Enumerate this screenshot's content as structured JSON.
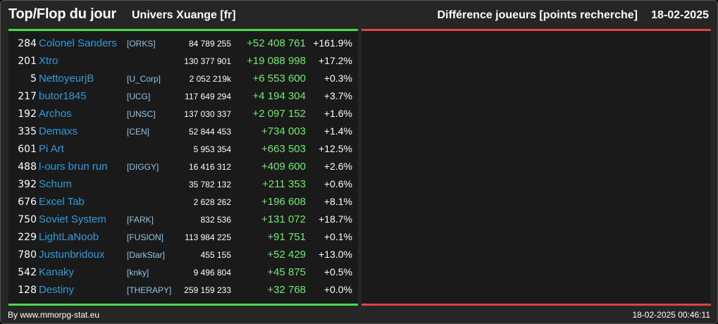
{
  "header": {
    "title": "Top/Flop du jour",
    "universe": "Univers Xuange [fr]",
    "metric": "Différence joueurs [points recherche]",
    "date": "18-02-2025"
  },
  "top_rows": [
    {
      "rank": "284",
      "name": "Colonel Sanders",
      "alliance": "[ORKS]",
      "points": "84 789 255",
      "diff": "+52 408 761",
      "pct": "+161.9%"
    },
    {
      "rank": "201",
      "name": "Xtro",
      "alliance": "",
      "points": "130 377 901",
      "diff": "+19 088 998",
      "pct": "+17.2%"
    },
    {
      "rank": "5",
      "name": "NettoyeurjB",
      "alliance": "[U_Corp]",
      "points": "2 052 219k",
      "diff": "+6 553 600",
      "pct": "+0.3%"
    },
    {
      "rank": "217",
      "name": "butor1845",
      "alliance": "[UCG]",
      "points": "117 649 294",
      "diff": "+4 194 304",
      "pct": "+3.7%"
    },
    {
      "rank": "192",
      "name": "Archos",
      "alliance": "[UNSC]",
      "points": "137 030 337",
      "diff": "+2 097 152",
      "pct": "+1.6%"
    },
    {
      "rank": "335",
      "name": "Demaxs",
      "alliance": "[CEN]",
      "points": "52 844 453",
      "diff": "+734 003",
      "pct": "+1.4%"
    },
    {
      "rank": "601",
      "name": "Pi Art",
      "alliance": "",
      "points": "5 953 354",
      "diff": "+663 503",
      "pct": "+12.5%"
    },
    {
      "rank": "488",
      "name": "l-ours brun run",
      "alliance": "[DIGGY]",
      "points": "16 416 312",
      "diff": "+409 600",
      "pct": "+2.6%"
    },
    {
      "rank": "392",
      "name": "Schum",
      "alliance": "",
      "points": "35 782 132",
      "diff": "+211 353",
      "pct": "+0.6%"
    },
    {
      "rank": "676",
      "name": "Excel Tab",
      "alliance": "",
      "points": "2 628 262",
      "diff": "+196 608",
      "pct": "+8.1%"
    },
    {
      "rank": "750",
      "name": "Soviet System",
      "alliance": "[FARK]",
      "points": "832 536",
      "diff": "+131 072",
      "pct": "+18.7%"
    },
    {
      "rank": "229",
      "name": "LightLaNoob",
      "alliance": "[FUSION]",
      "points": "113 984 225",
      "diff": "+91 751",
      "pct": "+0.1%"
    },
    {
      "rank": "780",
      "name": "Justunbridoux",
      "alliance": "[DarkStar]",
      "points": "455 155",
      "diff": "+52 429",
      "pct": "+13.0%"
    },
    {
      "rank": "542",
      "name": "Kanaky",
      "alliance": "[knky]",
      "points": "9 496 804",
      "diff": "+45 875",
      "pct": "+0.5%"
    },
    {
      "rank": "128",
      "name": "Destiny",
      "alliance": "[THERAPY]",
      "points": "259 159 233",
      "diff": "+32 768",
      "pct": "+0.0%"
    }
  ],
  "flop_rows": [],
  "footer": {
    "credit": "By www.mmorpg-stat.eu",
    "timestamp": "18-02-2025 00:46:11"
  },
  "colors": {
    "top_accent": "#44dd44",
    "flop_accent": "#dd4444",
    "player_link": "#2d9cdb",
    "alliance": "#8ec5ea",
    "gain": "#6fea6f"
  }
}
